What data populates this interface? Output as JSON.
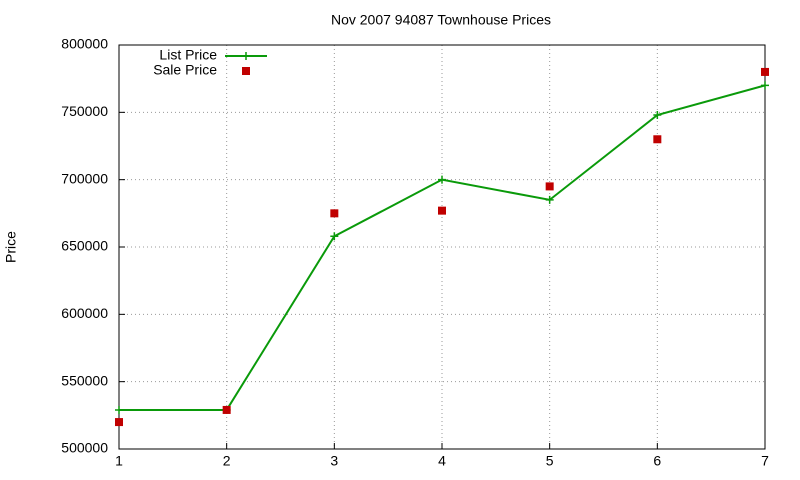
{
  "chart_data": {
    "type": "line",
    "title": "Nov 2007 94087 Townhouse Prices",
    "ylabel": "Price",
    "x": [
      1,
      2,
      3,
      4,
      5,
      6,
      7
    ],
    "series": [
      {
        "name": "List Price",
        "color": "#0a9a0a",
        "style": "linespoints",
        "values": [
          529000,
          529000,
          658000,
          700000,
          685000,
          748000,
          770000
        ]
      },
      {
        "name": "Sale Price",
        "color": "#c00000",
        "style": "points",
        "values": [
          520000,
          529000,
          675000,
          677000,
          695000,
          730000,
          780000
        ]
      }
    ],
    "xlim": [
      1,
      7
    ],
    "xticks": [
      1,
      2,
      3,
      4,
      5,
      6,
      7
    ],
    "ylim": [
      500000,
      800000
    ],
    "yticks": [
      500000,
      550000,
      600000,
      650000,
      700000,
      750000,
      800000
    ],
    "grid": true,
    "legend": "top-left"
  }
}
